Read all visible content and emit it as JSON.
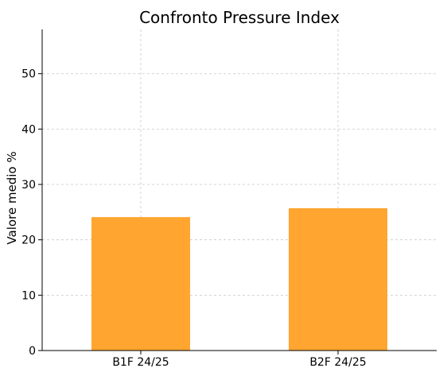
{
  "chart_data": {
    "type": "bar",
    "title": "Confronto Pressure Index",
    "xlabel": "",
    "ylabel": "Valore medio %",
    "categories": [
      "B1F 24/25",
      "B2F 24/25"
    ],
    "values": [
      24.1,
      25.7
    ],
    "ylim": [
      0,
      58
    ],
    "yticks": [
      0,
      10,
      20,
      30,
      40,
      50
    ],
    "grid": true,
    "bar_color": "#ffa530"
  }
}
